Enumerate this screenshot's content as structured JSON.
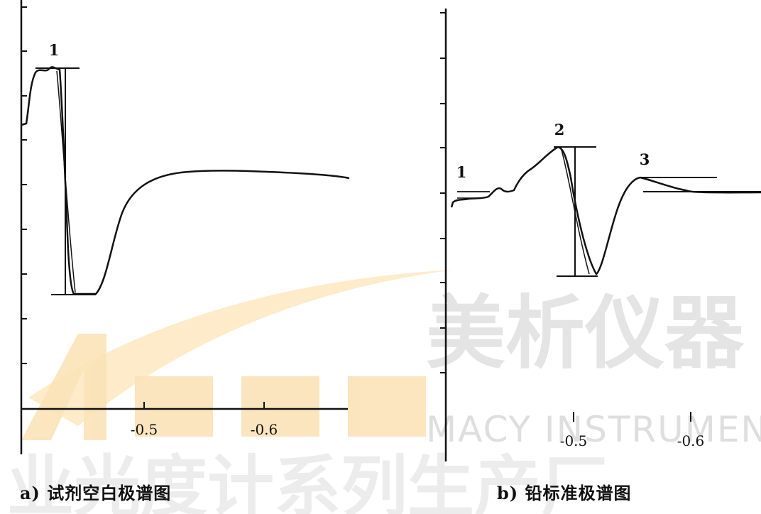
{
  "watermark": {
    "logo": "MACY",
    "cn": "美析仪器",
    "en": "MACY INSTRUMENT",
    "slogan": "业光度计系列生产厂",
    "colors": {
      "orange": "#f5a623",
      "gray": "#d6d6d6"
    }
  },
  "chart_data": [
    {
      "type": "line",
      "panel": "a",
      "caption": "a)  试剂空白极谱图",
      "title": "",
      "xlabel": "",
      "ylabel": "",
      "x_tick_labels": [
        "-0.5",
        "-0.6"
      ],
      "peaks": [
        {
          "label": "1"
        }
      ]
    },
    {
      "type": "line",
      "panel": "b",
      "caption": "b)  铅标准极谱图",
      "title": "",
      "xlabel": "",
      "ylabel": "",
      "x_tick_labels": [
        "-0.5",
        "-0.6"
      ],
      "peaks": [
        {
          "label": "1"
        },
        {
          "label": "2"
        },
        {
          "label": "3"
        }
      ]
    }
  ]
}
